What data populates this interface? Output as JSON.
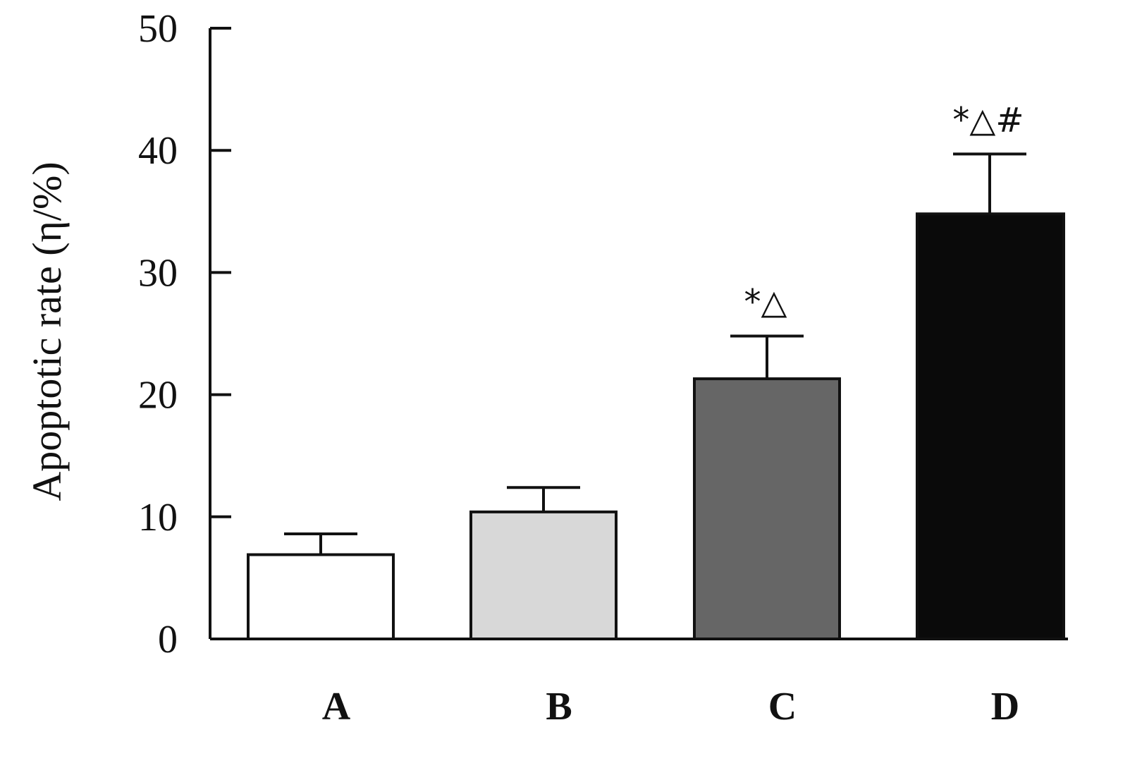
{
  "chart_data": {
    "type": "bar",
    "title": "",
    "xlabel": "",
    "ylabel": "Apoptotic rate (η/%)",
    "ylim": [
      0,
      50
    ],
    "yticks": [
      0,
      10,
      20,
      30,
      40,
      50
    ],
    "grid": false,
    "legend": "none",
    "categories": [
      "A",
      "B",
      "C",
      "D"
    ],
    "values": [
      6.9,
      10.4,
      21.3,
      34.8
    ],
    "errors": [
      1.7,
      2.0,
      3.5,
      4.9
    ],
    "annotations": [
      "",
      "",
      "*△",
      "*△#"
    ],
    "bar_colors": [
      "#ffffff",
      "#d8d8d8",
      "#666666",
      "#0a0a0a"
    ],
    "edge_color": "#111111"
  }
}
